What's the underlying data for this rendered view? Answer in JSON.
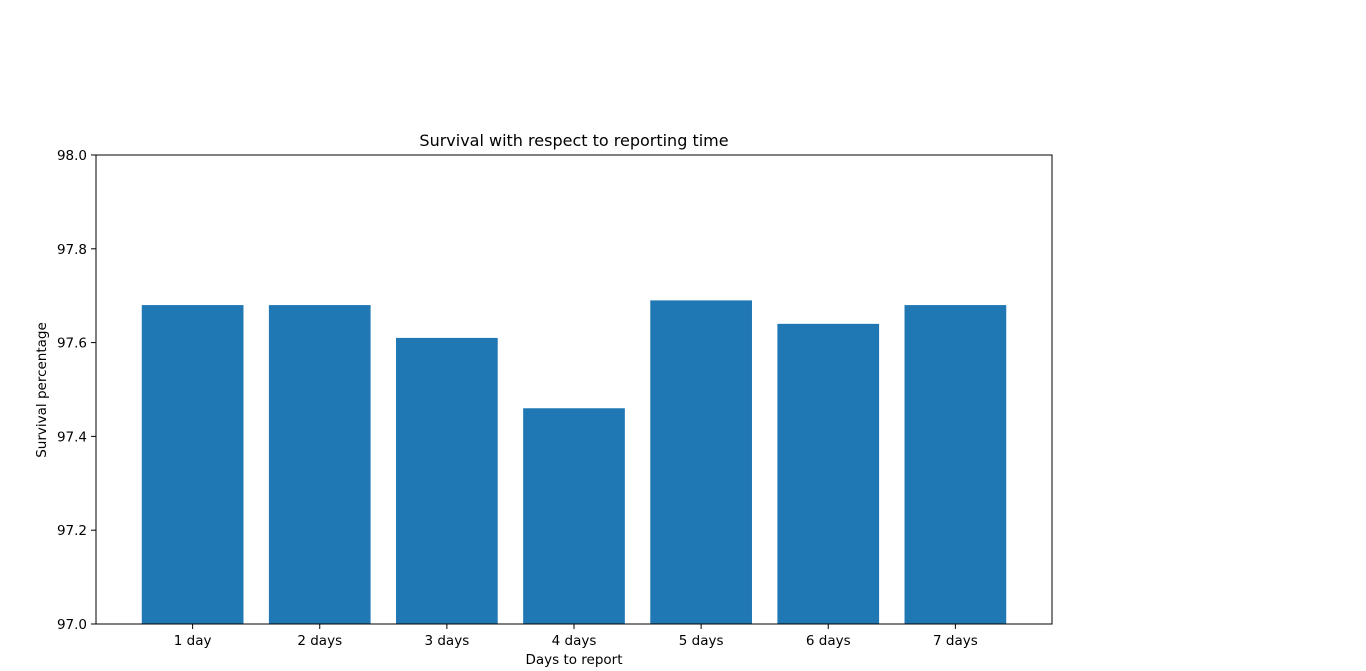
{
  "chart_data": {
    "type": "bar",
    "title": "Survival with respect to reporting time",
    "xlabel": "Days to report",
    "ylabel": "Survival percentage",
    "categories": [
      "1 day",
      "2 days",
      "3 days",
      "4 days",
      "5 days",
      "6 days",
      "7 days"
    ],
    "values": [
      97.68,
      97.68,
      97.61,
      97.46,
      97.69,
      97.64,
      97.68
    ],
    "ylim": [
      97.0,
      98.0
    ],
    "yticks": [
      "97.0",
      "97.2",
      "97.4",
      "97.6",
      "97.8",
      "98.0"
    ],
    "grid": false,
    "legend": "none",
    "bar_color": "#1f77b4"
  }
}
